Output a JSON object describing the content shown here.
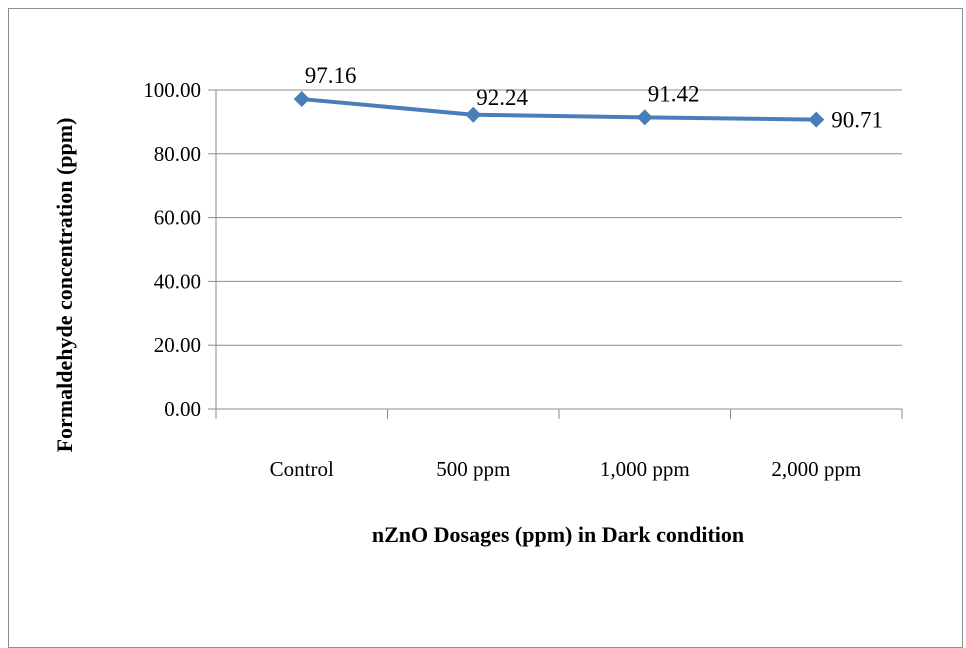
{
  "chart_data": {
    "type": "line",
    "categories": [
      "Control",
      "500 ppm",
      "1,000 ppm",
      "2,000 ppm"
    ],
    "series": [
      {
        "values": [
          97.16,
          92.24,
          91.42,
          90.71
        ],
        "color": "#4A7EBB",
        "marker": "diamond"
      }
    ],
    "data_labels": [
      "97.16",
      "92.24",
      "91.42",
      "90.71"
    ],
    "y_ticks": [
      "0.00",
      "20.00",
      "40.00",
      "60.00",
      "80.00",
      "100.00"
    ],
    "ylim": [
      0,
      100
    ],
    "y_step": 20,
    "grid": true,
    "legend": "none",
    "xlabel": "nZnO Dosages (ppm) in Dark condition",
    "ylabel": "Formaldehyde  concentration (ppm)"
  }
}
